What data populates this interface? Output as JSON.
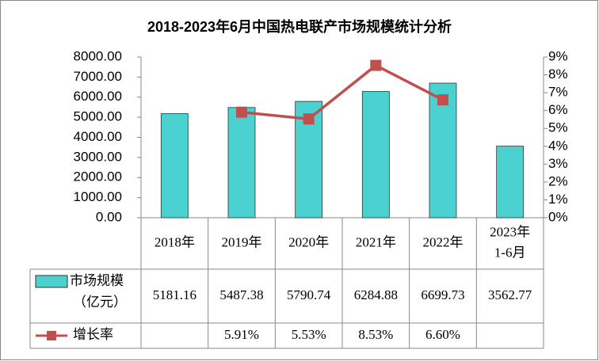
{
  "chart_data": {
    "type": "bar",
    "title": "2018-2023年6月中国热电联产市场规模统计分析",
    "categories": [
      "2018年",
      "2019年",
      "2020年",
      "2021年",
      "2022年",
      "2023年\n1-6月"
    ],
    "series": [
      {
        "name": "市场规模\n（亿元）",
        "type": "bar",
        "color": "#4bd1cf",
        "values": [
          5181.16,
          5487.38,
          5790.74,
          6284.88,
          6699.73,
          3562.77
        ]
      },
      {
        "name": "增长率",
        "type": "line",
        "axis": "y2",
        "color": "#c0504d",
        "values": [
          null,
          5.91,
          5.53,
          8.53,
          6.6,
          null
        ],
        "value_labels": [
          null,
          "5.91%",
          "5.53%",
          "8.53%",
          "6.60%",
          null
        ]
      }
    ],
    "ylim": [
      0,
      8000
    ],
    "yticks": [
      {
        "value": 0,
        "label": "0.00"
      },
      {
        "value": 1000,
        "label": "1000.00"
      },
      {
        "value": 2000,
        "label": "2000.00"
      },
      {
        "value": 3000,
        "label": "3000.00"
      },
      {
        "value": 4000,
        "label": "4000.00"
      },
      {
        "value": 5000,
        "label": "5000.00"
      },
      {
        "value": 6000,
        "label": "6000.00"
      },
      {
        "value": 7000,
        "label": "7000.00"
      },
      {
        "value": 8000,
        "label": "8000.00"
      }
    ],
    "y2lim": [
      0,
      9
    ],
    "y2ticks": [
      {
        "value": 0,
        "label": "0%"
      },
      {
        "value": 1,
        "label": "1%"
      },
      {
        "value": 2,
        "label": "2%"
      },
      {
        "value": 3,
        "label": "3%"
      },
      {
        "value": 4,
        "label": "4%"
      },
      {
        "value": 5,
        "label": "5%"
      },
      {
        "value": 6,
        "label": "6%"
      },
      {
        "value": 7,
        "label": "7%"
      },
      {
        "value": 8,
        "label": "8%"
      },
      {
        "value": 9,
        "label": "9%"
      }
    ]
  }
}
